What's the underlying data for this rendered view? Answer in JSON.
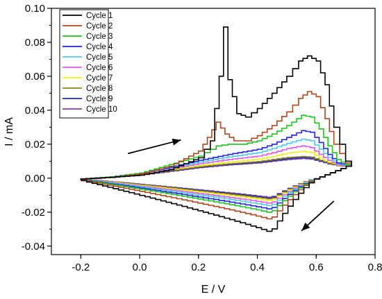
{
  "chart_data": {
    "type": "line",
    "title": "",
    "xlabel": "E / V",
    "ylabel": "I / mA",
    "xlim": [
      -0.3,
      0.8
    ],
    "ylim": [
      -0.045,
      0.1
    ],
    "xticks": [
      -0.2,
      0.0,
      0.2,
      0.4,
      0.6,
      0.8
    ],
    "xtick_labels": [
      "-0.2",
      "0.0",
      "0.2",
      "0.4",
      "0.6",
      "0.8"
    ],
    "yticks": [
      -0.04,
      -0.02,
      0.0,
      0.02,
      0.04,
      0.06,
      0.08,
      0.1
    ],
    "ytick_labels": [
      "-0.04",
      "-0.02",
      "0.00",
      "0.02",
      "0.04",
      "0.06",
      "0.08",
      "0.10"
    ],
    "grid": false,
    "legend_position": "top-left",
    "annotations": [
      {
        "type": "arrow",
        "direction": "up-right",
        "from": [
          -0.04,
          0.0145
        ],
        "to": [
          0.14,
          0.0225
        ]
      },
      {
        "type": "arrow",
        "direction": "down-left",
        "from": [
          0.66,
          -0.0135
        ],
        "to": [
          0.55,
          -0.031
        ]
      }
    ],
    "series": [
      {
        "name": "Cycle 1",
        "color": "#000000",
        "cathodic_peak": -0.032,
        "x": [
          -0.2,
          -0.1,
          0.0,
          0.1,
          0.2,
          0.24,
          0.27,
          0.285,
          0.3,
          0.33,
          0.36,
          0.4,
          0.45,
          0.5,
          0.54,
          0.57,
          0.6,
          0.63,
          0.66,
          0.7,
          0.72
        ],
        "y": [
          -0.0005,
          0.0005,
          0.0018,
          0.005,
          0.012,
          0.022,
          0.06,
          0.089,
          0.058,
          0.038,
          0.036,
          0.041,
          0.05,
          0.06,
          0.069,
          0.072,
          0.069,
          0.055,
          0.03,
          0.01,
          0.008
        ]
      },
      {
        "name": "Cycle 2",
        "color": "#b0441e",
        "cathodic_peak": -0.0245,
        "x": [
          -0.2,
          -0.1,
          0.0,
          0.1,
          0.2,
          0.23,
          0.26,
          0.29,
          0.32,
          0.36,
          0.4,
          0.45,
          0.5,
          0.54,
          0.57,
          0.6,
          0.63,
          0.66,
          0.7,
          0.72
        ],
        "y": [
          -0.0005,
          0.0005,
          0.0025,
          0.007,
          0.016,
          0.024,
          0.033,
          0.026,
          0.022,
          0.022,
          0.025,
          0.031,
          0.039,
          0.047,
          0.051,
          0.048,
          0.035,
          0.02,
          0.009,
          0.008
        ]
      },
      {
        "name": "Cycle 3",
        "color": "#1fc11f",
        "cathodic_peak": -0.0205,
        "x": [
          -0.2,
          -0.1,
          0.0,
          0.1,
          0.2,
          0.26,
          0.3,
          0.35,
          0.4,
          0.45,
          0.5,
          0.55,
          0.58,
          0.61,
          0.64,
          0.67,
          0.7,
          0.72
        ],
        "y": [
          -0.0005,
          0.0008,
          0.003,
          0.008,
          0.013,
          0.019,
          0.02,
          0.02,
          0.022,
          0.026,
          0.031,
          0.037,
          0.036,
          0.029,
          0.019,
          0.011,
          0.008,
          0.008
        ]
      },
      {
        "name": "Cycle 4",
        "color": "#1f22e3",
        "cathodic_peak": -0.0185,
        "x": [
          -0.2,
          -0.1,
          0.0,
          0.1,
          0.2,
          0.3,
          0.4,
          0.45,
          0.5,
          0.55,
          0.58,
          0.61,
          0.64,
          0.67,
          0.7,
          0.72
        ],
        "y": [
          -0.0004,
          0.0008,
          0.003,
          0.0065,
          0.0105,
          0.014,
          0.017,
          0.02,
          0.024,
          0.028,
          0.027,
          0.021,
          0.014,
          0.009,
          0.008,
          0.008
        ]
      },
      {
        "name": "Cycle 5",
        "color": "#4fc9ee",
        "cathodic_peak": -0.0165,
        "x": [
          -0.2,
          -0.1,
          0.0,
          0.1,
          0.2,
          0.3,
          0.4,
          0.45,
          0.5,
          0.55,
          0.58,
          0.61,
          0.64,
          0.67,
          0.7,
          0.72
        ],
        "y": [
          -0.0004,
          0.0007,
          0.0028,
          0.006,
          0.0095,
          0.0125,
          0.015,
          0.0175,
          0.0205,
          0.023,
          0.022,
          0.017,
          0.012,
          0.0085,
          0.0078,
          0.0078
        ]
      },
      {
        "name": "Cycle 6",
        "color": "#e455ee",
        "cathodic_peak": -0.015,
        "x": [
          -0.2,
          -0.1,
          0.0,
          0.1,
          0.2,
          0.3,
          0.4,
          0.45,
          0.5,
          0.55,
          0.58,
          0.61,
          0.64,
          0.67,
          0.7,
          0.72
        ],
        "y": [
          -0.0004,
          0.0006,
          0.0025,
          0.0055,
          0.0085,
          0.011,
          0.013,
          0.015,
          0.0175,
          0.019,
          0.018,
          0.014,
          0.0105,
          0.008,
          0.0075,
          0.0075
        ]
      },
      {
        "name": "Cycle 7",
        "color": "#f1ee1f",
        "cathodic_peak": -0.0135,
        "x": [
          -0.2,
          -0.1,
          0.0,
          0.1,
          0.2,
          0.3,
          0.4,
          0.45,
          0.5,
          0.55,
          0.58,
          0.61,
          0.64,
          0.67,
          0.7,
          0.72
        ],
        "y": [
          -0.0004,
          0.0005,
          0.0022,
          0.005,
          0.0075,
          0.0095,
          0.0112,
          0.0128,
          0.0148,
          0.0158,
          0.015,
          0.012,
          0.0095,
          0.0078,
          0.0074,
          0.0074
        ]
      },
      {
        "name": "Cycle 8",
        "color": "#8a7e14",
        "cathodic_peak": -0.0125,
        "x": [
          -0.2,
          -0.1,
          0.0,
          0.1,
          0.2,
          0.3,
          0.4,
          0.45,
          0.5,
          0.55,
          0.58,
          0.61,
          0.64,
          0.67,
          0.7,
          0.72
        ],
        "y": [
          -0.0004,
          0.0005,
          0.002,
          0.0045,
          0.0068,
          0.0085,
          0.0098,
          0.011,
          0.0122,
          0.0128,
          0.0124,
          0.0105,
          0.0088,
          0.0076,
          0.0073,
          0.0073
        ]
      },
      {
        "name": "Cycle 9",
        "color": "#1c2bb8",
        "cathodic_peak": -0.012,
        "x": [
          -0.2,
          -0.1,
          0.0,
          0.1,
          0.2,
          0.3,
          0.4,
          0.45,
          0.5,
          0.55,
          0.58,
          0.61,
          0.64,
          0.67,
          0.7,
          0.72
        ],
        "y": [
          -0.0004,
          0.0004,
          0.0019,
          0.0043,
          0.0065,
          0.0082,
          0.0094,
          0.0105,
          0.0116,
          0.0122,
          0.0118,
          0.0102,
          0.0086,
          0.0075,
          0.0072,
          0.0072
        ]
      },
      {
        "name": "Cycle 10",
        "color": "#7b3ea3",
        "cathodic_peak": -0.0115,
        "x": [
          -0.2,
          -0.1,
          0.0,
          0.1,
          0.2,
          0.3,
          0.4,
          0.45,
          0.5,
          0.55,
          0.58,
          0.61,
          0.64,
          0.67,
          0.7,
          0.72
        ],
        "y": [
          -0.0004,
          0.0004,
          0.0018,
          0.004,
          0.0062,
          0.0078,
          0.009,
          0.01,
          0.011,
          0.0116,
          0.0112,
          0.0098,
          0.0084,
          0.0074,
          0.0071,
          0.0071
        ]
      }
    ]
  }
}
